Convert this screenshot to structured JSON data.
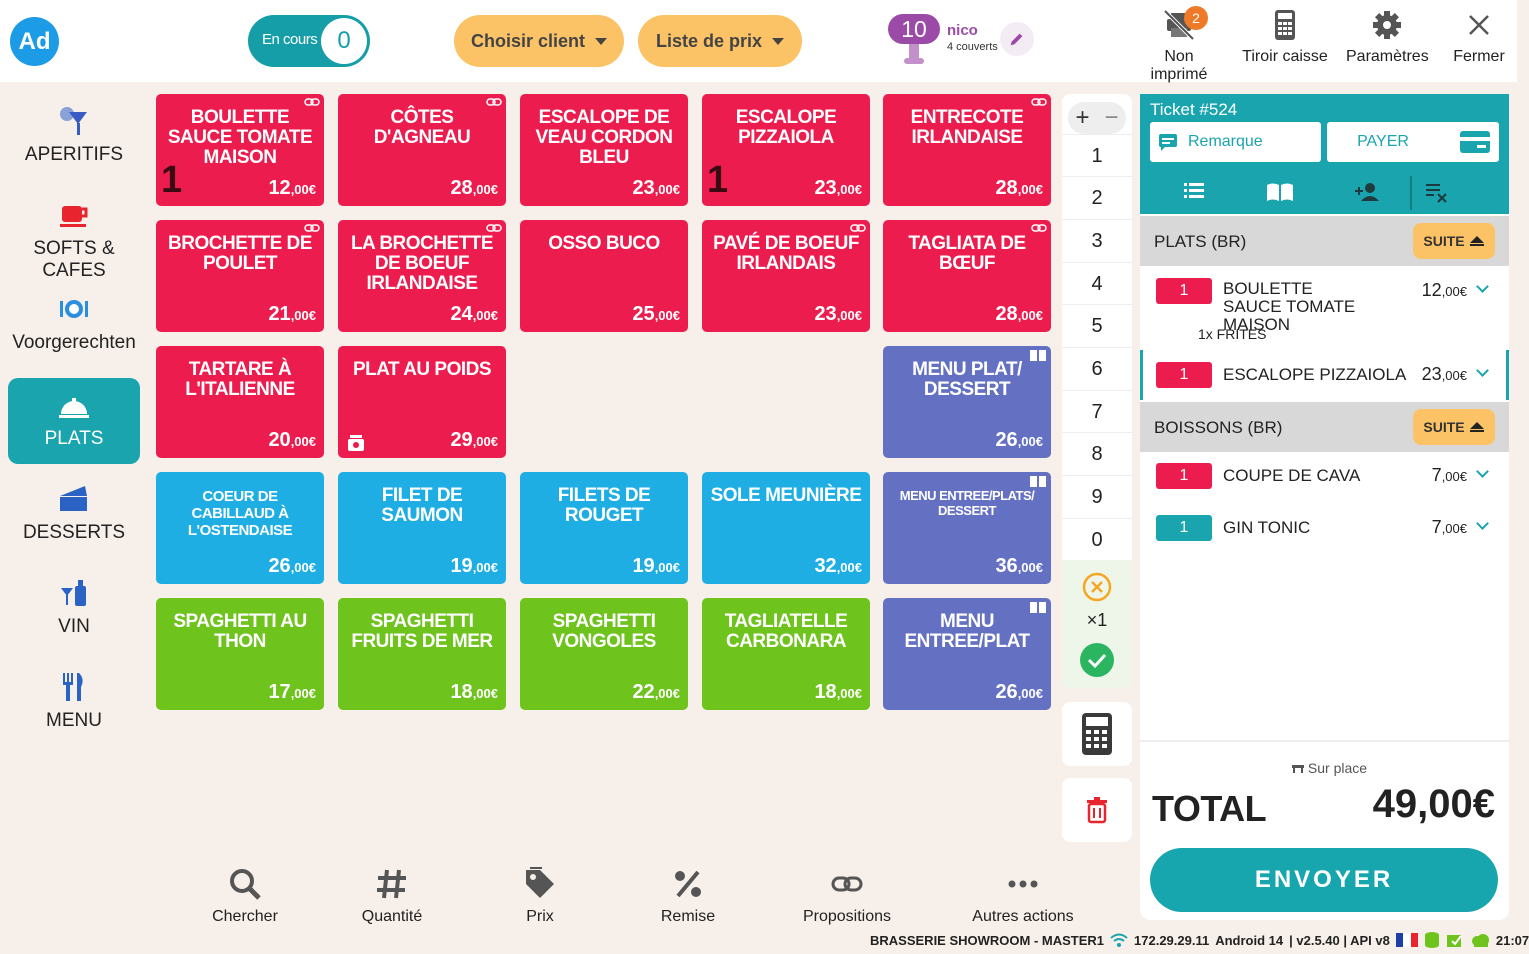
{
  "topbar": {
    "logo": "Ad",
    "en_cours_label": "En cours",
    "en_cours_count": "0",
    "choose_client": "Choisir client",
    "price_list": "Liste de prix",
    "table_number": "10",
    "waiter": "nico",
    "covers": "4 couverts",
    "actions": [
      {
        "label": "Non imprimé",
        "icon": "printer-off-icon",
        "badge": "2"
      },
      {
        "label": "Tiroir caisse",
        "icon": "calculator-icon"
      },
      {
        "label": "Paramètres",
        "icon": "gear-icon"
      },
      {
        "label": "Fermer",
        "icon": "close-icon"
      }
    ]
  },
  "categories": [
    {
      "label": "APERITIFS",
      "icon": "cocktail-icon"
    },
    {
      "label": "SOFTS & CAFES",
      "icon": "coffee-cup-icon"
    },
    {
      "label": "Voorgerechten",
      "icon": "plate-icon"
    },
    {
      "label": "PLATS",
      "icon": "cloche-icon",
      "active": true
    },
    {
      "label": "DESSERTS",
      "icon": "cake-icon"
    },
    {
      "label": "VIN",
      "icon": "wine-icon"
    },
    {
      "label": "MENU",
      "icon": "cutlery-icon"
    }
  ],
  "products": [
    {
      "name": "BOULETTE SAUCE TOMATE MAISON",
      "price": "12",
      "cents": ",00€",
      "color": "#ec1d4e"
    },
    {
      "name": "CÔTES D'AGNEAU",
      "price": "28",
      "cents": ",00€",
      "color": "#ec1d4e"
    },
    {
      "name": "ESCALOPE DE VEAU CORDON BLEU",
      "price": "23",
      "cents": ",00€",
      "color": "#ec1d4e"
    },
    {
      "name": "ESCALOPE PIZZAIOLA",
      "price": "23",
      "cents": ",00€",
      "color": "#ec1d4e"
    },
    {
      "name": "ENTRECOTE IRLANDAISE",
      "price": "28",
      "cents": ",00€",
      "color": "#ec1d4e"
    },
    {
      "name": "BROCHETTE DE POULET",
      "price": "21",
      "cents": ",00€"
    },
    {
      "name": "LA BROCHETTE DE BOEUF IRLANDAISE",
      "price": "24",
      "cents": ",00€"
    },
    {
      "name": "OSSO BUCO",
      "price": "25",
      "cents": ",00€"
    },
    {
      "name": "PAVÉ DE BOEUF IRLANDAIS",
      "price": "23",
      "cents": ",00€"
    },
    {
      "name": "TAGLIATA DE BŒUF",
      "price": "28",
      "cents": ",00€"
    },
    {
      "name": "TARTARE À L'ITALIENNE",
      "price": "20",
      "cents": ",00€"
    },
    {
      "name": "PLAT AU POIDS",
      "price": "29",
      "cents": ",00€"
    },
    {
      "name": "MENU PLAT/ DESSERT",
      "price": "26",
      "cents": ",00€"
    },
    {
      "name": "COEUR DE CABILLAUD À L'OSTENDAISE",
      "price": "26",
      "cents": ",00€"
    },
    {
      "name": "FILET DE SAUMON",
      "price": "19",
      "cents": ",00€"
    },
    {
      "name": "FILETS DE ROUGET",
      "price": "19",
      "cents": ",00€"
    },
    {
      "name": "SOLE MEUNIÈRE",
      "price": "32",
      "cents": ",00€"
    },
    {
      "name": "MENU ENTREE/PLATS/ DESSERT",
      "price": "36",
      "cents": ",00€"
    },
    {
      "name": "SPAGHETTI AU THON",
      "price": "17",
      "cents": ",00€"
    },
    {
      "name": "SPAGHETTI FRUITS DE MER",
      "price": "18",
      "cents": ",00€"
    },
    {
      "name": "SPAGHETTI VONGOLES",
      "price": "22",
      "cents": ",00€"
    },
    {
      "name": "TAGLIATELLE CARBONARA",
      "price": "18",
      "cents": ",00€"
    },
    {
      "name": "MENU ENTREE/PLAT",
      "price": "26",
      "cents": ",00€"
    }
  ],
  "product_qty_marks": [
    "1",
    "1"
  ],
  "numpad": {
    "keys": [
      "1",
      "2",
      "3",
      "4",
      "5",
      "6",
      "7",
      "8",
      "9",
      "0"
    ],
    "multiplier": "×1"
  },
  "ticket": {
    "title": "Ticket #524",
    "remark": "Remarque",
    "pay": "PAYER",
    "suite": "SUITE",
    "sections": [
      {
        "title": "PLATS (BR)",
        "lines": [
          {
            "qty": "1",
            "name": "BOULETTE SAUCE TOMATE MAISON",
            "price": "12",
            "cents": ",00€",
            "sub": "1x FRITES"
          },
          {
            "qty": "1",
            "name": "ESCALOPE PIZZAIOLA",
            "price": "23",
            "cents": ",00€"
          }
        ]
      },
      {
        "title": "BOISSONS (BR)",
        "lines": [
          {
            "qty": "1",
            "name": "COUPE DE CAVA",
            "price": "7",
            "cents": ",00€"
          },
          {
            "qty": "1",
            "name": "GIN TONIC",
            "price": "7",
            "cents": ",00€"
          }
        ]
      }
    ],
    "service_mode": "Sur place",
    "total_label": "TOTAL",
    "total_value": "49,00€",
    "send": "ENVOYER"
  },
  "bottom_actions": [
    {
      "label": "Chercher",
      "icon": "search-icon"
    },
    {
      "label": "Quantité",
      "icon": "hash-icon"
    },
    {
      "label": "Prix",
      "icon": "price-tag-icon"
    },
    {
      "label": "Remise",
      "icon": "percent-icon"
    },
    {
      "label": "Propositions",
      "icon": "link-icon"
    },
    {
      "label": "Autres actions",
      "icon": "more-icon"
    }
  ],
  "status": {
    "store": "BRASSERIE SHOWROOM - MASTER1",
    "ip": "172.29.29.11",
    "android": "Android 14",
    "version": "| v2.5.40 | API v8",
    "time": "21:07"
  },
  "colors": {
    "teal": "#1aa4ae",
    "red_tile": "#ec1d4e",
    "blue_tile": "#1eaee4",
    "purple_tile": "#6471c2",
    "green_tile": "#6ec31c",
    "amber": "#fcc266"
  }
}
